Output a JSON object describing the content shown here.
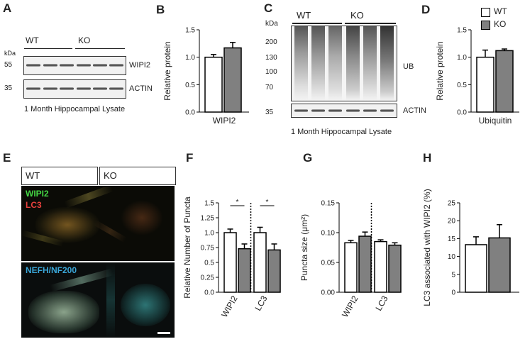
{
  "panels": {
    "A": "A",
    "B": "B",
    "C": "C",
    "D": "D",
    "E": "E",
    "F": "F",
    "G": "G",
    "H": "H"
  },
  "legend": {
    "wt": "WT",
    "ko": "KO",
    "colors": {
      "wt": "#ffffff",
      "ko": "#808080"
    }
  },
  "blot_a": {
    "wt": "WT",
    "ko": "KO",
    "kda": "kDa",
    "marker_55": "55",
    "marker_35": "35",
    "band_top": "WIPI2",
    "band_bottom": "ACTIN",
    "caption": "1 Month Hippocampal Lysate"
  },
  "blot_c": {
    "wt": "WT",
    "ko": "KO",
    "kda": "kDa",
    "markers": [
      "200",
      "130",
      "100",
      "70"
    ],
    "marker_35": "35",
    "label_ub": "UB",
    "label_actin": "ACTIN",
    "caption": "1 Month Hippocampal Lysate"
  },
  "micro_e": {
    "wt": "WT",
    "ko": "KO",
    "wipi2": "WIPI2",
    "lc3": "LC3",
    "nefh": "NEFH/NF200"
  },
  "chart_data": [
    {
      "panel": "B",
      "type": "bar",
      "ylabel": "Relative protein",
      "categories": [
        "WIPI2"
      ],
      "ylim": [
        0,
        1.5
      ],
      "yticks": [
        "0.0",
        "0.5",
        "1.0",
        "1.5"
      ],
      "series": [
        {
          "name": "WT",
          "values": [
            1.0
          ],
          "error": [
            0.05
          ]
        },
        {
          "name": "KO",
          "values": [
            1.17
          ],
          "error": [
            0.1
          ]
        }
      ]
    },
    {
      "panel": "D",
      "type": "bar",
      "ylabel": "Relative protein",
      "categories": [
        "Ubiquitin"
      ],
      "ylim": [
        0,
        1.5
      ],
      "yticks": [
        "0.0",
        "0.5",
        "1.0",
        "1.5"
      ],
      "series": [
        {
          "name": "WT",
          "values": [
            1.0
          ],
          "error": [
            0.13
          ]
        },
        {
          "name": "KO",
          "values": [
            1.12
          ],
          "error": [
            0.03
          ]
        }
      ]
    },
    {
      "panel": "F",
      "type": "bar",
      "ylabel": "Relative Number of Puncta",
      "categories": [
        "WIPI2",
        "LC3"
      ],
      "ylim": [
        0,
        1.5
      ],
      "yticks": [
        "0.0",
        "0.25",
        "0.5",
        "0.75",
        "1.0",
        "1.25",
        "1.5"
      ],
      "significance": [
        "*",
        "*"
      ],
      "series": [
        {
          "name": "WT",
          "values": [
            1.0,
            1.0
          ],
          "error": [
            0.06,
            0.09
          ]
        },
        {
          "name": "KO",
          "values": [
            0.73,
            0.71
          ],
          "error": [
            0.08,
            0.1
          ]
        }
      ]
    },
    {
      "panel": "G",
      "type": "bar",
      "ylabel": "Puncta size (μm²)",
      "categories": [
        "WIPI2",
        "LC3"
      ],
      "ylim": [
        0,
        0.15
      ],
      "yticks": [
        "0.00",
        "0.05",
        "0.10",
        "0.15"
      ],
      "series": [
        {
          "name": "WT",
          "values": [
            0.083,
            0.085
          ],
          "error": [
            0.004,
            0.003
          ]
        },
        {
          "name": "KO",
          "values": [
            0.094,
            0.079
          ],
          "error": [
            0.007,
            0.004
          ]
        }
      ]
    },
    {
      "panel": "H",
      "type": "bar",
      "ylabel": "LC3 associated with WIPI2 (%)",
      "categories": [
        ""
      ],
      "ylim": [
        0,
        25
      ],
      "yticks": [
        "0",
        "5",
        "10",
        "15",
        "20",
        "25"
      ],
      "series": [
        {
          "name": "WT",
          "values": [
            13.3
          ],
          "error": [
            2.2
          ]
        },
        {
          "name": "KO",
          "values": [
            15.2
          ],
          "error": [
            3.7
          ]
        }
      ]
    }
  ]
}
